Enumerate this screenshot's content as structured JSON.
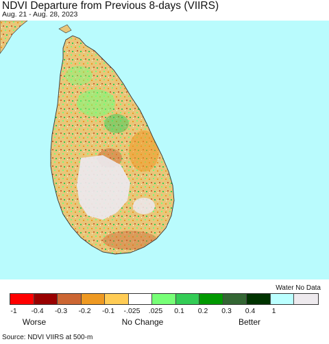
{
  "header": {
    "title": "NDVI Departure from Previous 8-days (VIIRS)",
    "date_range": "Aug. 21 - Aug. 28, 2023"
  },
  "map": {
    "region": "Sri Lanka",
    "ocean_color": "#b9fbfd",
    "land_base_color": "#e8c67a",
    "no_data_color": "#ece8ee"
  },
  "legend": {
    "water_label": "Water No Data",
    "swatches": [
      {
        "color": "#ff0000"
      },
      {
        "color": "#990000"
      },
      {
        "color": "#cc6633"
      },
      {
        "color": "#ee9922"
      },
      {
        "color": "#ffcc55"
      },
      {
        "color": "#ffffff"
      },
      {
        "color": "#77ff77"
      },
      {
        "color": "#33cc55"
      },
      {
        "color": "#009900"
      },
      {
        "color": "#336633"
      },
      {
        "color": "#003300"
      },
      {
        "color": "#bbffff"
      },
      {
        "color": "#eeeaee"
      }
    ],
    "ticks": [
      "-1",
      "-0.4",
      "-0.3",
      "-0.2",
      "-0.1",
      "-.025",
      ".025",
      "0.1",
      "0.2",
      "0.3",
      "0.4",
      "1"
    ],
    "categories": {
      "worse": "Worse",
      "no_change": "No Change",
      "better": "Better"
    }
  },
  "footer": {
    "source": "Source: NDVI VIIRS at 500-m"
  }
}
